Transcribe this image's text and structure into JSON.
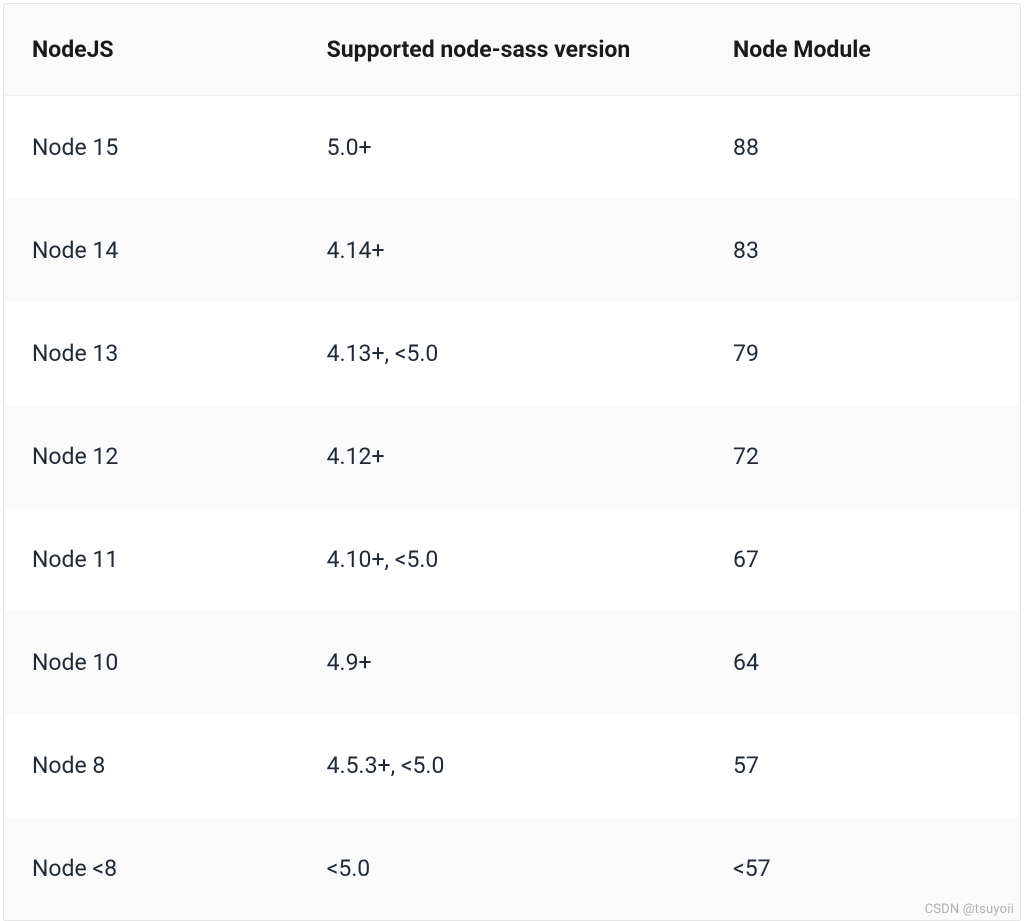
{
  "table": {
    "columns": [
      "NodeJS",
      "Supported node-sass version",
      "Node Module"
    ],
    "rows": [
      [
        "Node 15",
        "5.0+",
        "88"
      ],
      [
        "Node 14",
        "4.14+",
        "83"
      ],
      [
        "Node 13",
        "4.13+, <5.0",
        "79"
      ],
      [
        "Node 12",
        "4.12+",
        "72"
      ],
      [
        "Node 11",
        "4.10+, <5.0",
        "67"
      ],
      [
        "Node 10",
        "4.9+",
        "64"
      ],
      [
        "Node 8",
        "4.5.3+, <5.0",
        "57"
      ],
      [
        "Node <8",
        "<5.0",
        "<57"
      ]
    ],
    "header_bg": "#fafafa",
    "row_odd_bg": "#ffffff",
    "row_even_bg": "#fafafa",
    "text_color": "#1f2937",
    "header_color": "#1a1a1a",
    "font_size": 23,
    "header_font_weight": 700,
    "border_color": "#e5e5e5"
  },
  "watermark": "CSDN @tsuyoii"
}
